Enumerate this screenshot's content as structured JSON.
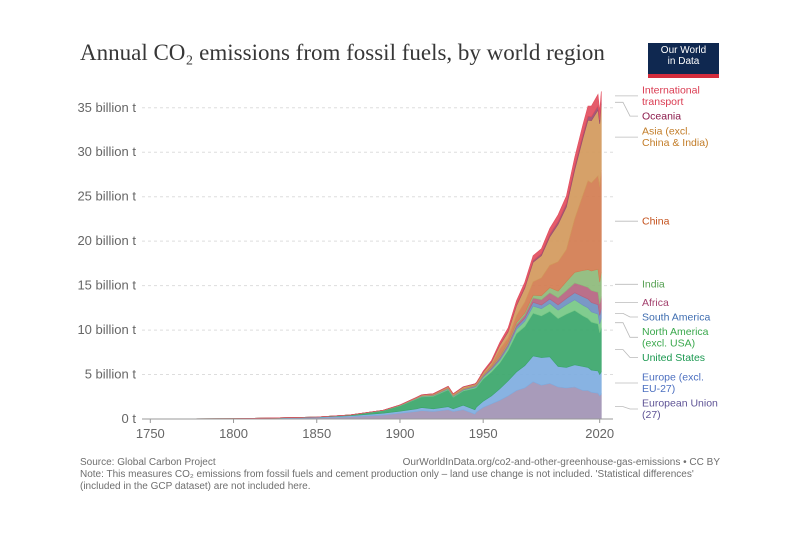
{
  "title": "Annual CO₂ emissions from fossil fuels, by world region",
  "logo": {
    "line1": "Our World",
    "line2": "in Data"
  },
  "footer": {
    "source": "Source: Global Carbon Project",
    "link": "OurWorldInData.org/co2-and-other-greenhouse-gas-emissions • CC BY",
    "note": "Note: This measures CO₂ emissions from fossil fuels and cement production only – land use change is not included. 'Statistical differences' (included in the GCP dataset) are not included here."
  },
  "chart_data": {
    "type": "area",
    "stacked": true,
    "unit": "billion t",
    "x": [
      1750,
      1800,
      1850,
      1870,
      1890,
      1900,
      1910,
      1913,
      1920,
      1929,
      1932,
      1938,
      1945,
      1946,
      1950,
      1955,
      1960,
      1965,
      1970,
      1975,
      1980,
      1985,
      1990,
      1995,
      2000,
      2005,
      2010,
      2013,
      2015,
      2019,
      2020,
      2021
    ],
    "ylim": [
      0,
      37
    ],
    "xlim": [
      1745,
      2028
    ],
    "yticks": [
      0,
      5,
      10,
      15,
      20,
      25,
      30,
      35
    ],
    "ytick_labels": [
      "0 t",
      "5 billion t",
      "10 billion t",
      "15 billion t",
      "20 billion t",
      "25 billion t",
      "30 billion t",
      "35 billion t"
    ],
    "xticks": [
      1750,
      1800,
      1850,
      1900,
      1950,
      2020
    ],
    "xtick_labels": [
      "1750",
      "1800",
      "1850",
      "1900",
      "1950",
      "2020"
    ],
    "grid": true,
    "legend": "right",
    "series": [
      {
        "name": "European Union (27)",
        "color": "#a192b4",
        "label_color": "#5e5395",
        "values": [
          0.01,
          0.03,
          0.13,
          0.25,
          0.45,
          0.65,
          0.85,
          0.95,
          0.85,
          1.05,
          0.85,
          1.05,
          0.55,
          0.8,
          1.3,
          1.7,
          2.1,
          2.6,
          3.2,
          3.5,
          4.2,
          3.8,
          4.0,
          3.6,
          3.5,
          3.6,
          3.2,
          3.2,
          3.0,
          2.9,
          2.6,
          2.8
        ]
      },
      {
        "name": "Europe (excl. EU-27)",
        "color": "#7eade0",
        "label_color": "#4c6fc0",
        "values": [
          0.0,
          0.005,
          0.07,
          0.12,
          0.2,
          0.23,
          0.3,
          0.33,
          0.3,
          0.33,
          0.3,
          0.5,
          0.5,
          0.55,
          0.7,
          0.9,
          1.3,
          1.7,
          2.1,
          2.5,
          2.9,
          3.1,
          3.0,
          2.3,
          2.3,
          2.5,
          2.7,
          2.6,
          2.5,
          2.5,
          2.4,
          2.5
        ]
      },
      {
        "name": "United States",
        "color": "#3aa66a",
        "label_color": "#1a9850",
        "values": [
          0.0,
          0.0,
          0.02,
          0.08,
          0.3,
          0.6,
          1.1,
          1.2,
          1.4,
          1.9,
          1.3,
          1.6,
          2.4,
          2.2,
          2.5,
          2.7,
          2.9,
          3.4,
          4.3,
          4.4,
          4.8,
          4.7,
          5.1,
          5.4,
          6.0,
          6.1,
          5.7,
          5.5,
          5.4,
          5.3,
          4.7,
          5.0
        ]
      },
      {
        "name": "North America (excl. USA)",
        "color": "#76c886",
        "label_color": "#3aa84c",
        "values": [
          0.0,
          0.0,
          0.003,
          0.008,
          0.02,
          0.04,
          0.06,
          0.07,
          0.08,
          0.11,
          0.08,
          0.1,
          0.13,
          0.14,
          0.2,
          0.25,
          0.3,
          0.35,
          0.5,
          0.6,
          0.8,
          0.8,
          0.9,
          0.95,
          1.05,
          1.2,
          1.2,
          1.2,
          1.15,
          1.1,
          1.0,
          1.05
        ]
      },
      {
        "name": "South America",
        "color": "#6f8fc1",
        "label_color": "#3f6db0",
        "values": [
          0.0,
          0.0,
          0.0,
          0.002,
          0.005,
          0.01,
          0.02,
          0.025,
          0.025,
          0.04,
          0.04,
          0.05,
          0.07,
          0.08,
          0.1,
          0.13,
          0.17,
          0.2,
          0.26,
          0.33,
          0.42,
          0.42,
          0.5,
          0.58,
          0.7,
          0.8,
          0.95,
          1.0,
          1.05,
          1.05,
          0.95,
          1.05
        ]
      },
      {
        "name": "Africa",
        "color": "#b56480",
        "label_color": "#a2406d",
        "values": [
          0.0,
          0.0,
          0.0,
          0.001,
          0.003,
          0.01,
          0.02,
          0.025,
          0.03,
          0.04,
          0.04,
          0.05,
          0.06,
          0.07,
          0.1,
          0.13,
          0.15,
          0.2,
          0.27,
          0.35,
          0.5,
          0.6,
          0.7,
          0.8,
          0.9,
          1.1,
          1.25,
          1.3,
          1.35,
          1.4,
          1.3,
          1.4
        ]
      },
      {
        "name": "India",
        "color": "#8dba79",
        "label_color": "#55a052",
        "values": [
          0.0,
          0.0,
          0.0,
          0.002,
          0.005,
          0.01,
          0.02,
          0.03,
          0.04,
          0.04,
          0.05,
          0.06,
          0.07,
          0.07,
          0.07,
          0.08,
          0.12,
          0.15,
          0.2,
          0.25,
          0.3,
          0.45,
          0.58,
          0.75,
          1.0,
          1.2,
          1.7,
          2.0,
          2.2,
          2.6,
          2.45,
          2.7
        ]
      },
      {
        "name": "China",
        "color": "#d27c50",
        "label_color": "#c4511c",
        "values": [
          0.0,
          0.0,
          0.0,
          0.0,
          0.001,
          0.003,
          0.01,
          0.012,
          0.02,
          0.03,
          0.03,
          0.04,
          0.05,
          0.05,
          0.08,
          0.2,
          0.8,
          0.5,
          0.8,
          1.2,
          1.5,
          2.0,
          2.5,
          3.3,
          3.6,
          6.0,
          8.5,
          10.0,
          9.9,
          10.5,
          10.7,
          11.5
        ]
      },
      {
        "name": "Asia (excl. China & India)",
        "color": "#d2995c",
        "label_color": "#c27c27",
        "values": [
          0.0,
          0.0,
          0.0,
          0.001,
          0.005,
          0.02,
          0.05,
          0.06,
          0.08,
          0.12,
          0.12,
          0.15,
          0.1,
          0.12,
          0.2,
          0.3,
          0.45,
          0.7,
          1.1,
          1.6,
          2.2,
          2.5,
          3.2,
          4.2,
          4.8,
          5.5,
          6.4,
          6.8,
          7.0,
          7.4,
          7.1,
          7.4
        ]
      },
      {
        "name": "Oceania",
        "color": "#9d4c6c",
        "label_color": "#8c1b4c",
        "values": [
          0.0,
          0.0,
          0.0,
          0.001,
          0.005,
          0.01,
          0.015,
          0.02,
          0.02,
          0.02,
          0.02,
          0.025,
          0.03,
          0.03,
          0.04,
          0.05,
          0.07,
          0.09,
          0.12,
          0.16,
          0.2,
          0.23,
          0.3,
          0.33,
          0.38,
          0.42,
          0.44,
          0.44,
          0.45,
          0.46,
          0.43,
          0.44
        ]
      },
      {
        "name": "International transport",
        "color": "#e24e5e",
        "label_color": "#da3b51",
        "values": [
          0.0,
          0.0,
          0.0,
          0.0,
          0.0,
          0.0,
          0.0,
          0.0,
          0.0,
          0.0,
          0.0,
          0.0,
          0.0,
          0.0,
          0.1,
          0.15,
          0.25,
          0.35,
          0.45,
          0.5,
          0.55,
          0.55,
          0.65,
          0.75,
          0.85,
          1.0,
          1.1,
          1.15,
          1.2,
          1.3,
          0.95,
          1.0
        ]
      }
    ],
    "label_order_top_to_bottom": [
      "International transport",
      "Oceania",
      "Asia (excl. China & India)",
      "China",
      "India",
      "Africa",
      "South America",
      "North America (excl. USA)",
      "United States",
      "Europe (excl. EU-27)",
      "European Union (27)"
    ]
  }
}
